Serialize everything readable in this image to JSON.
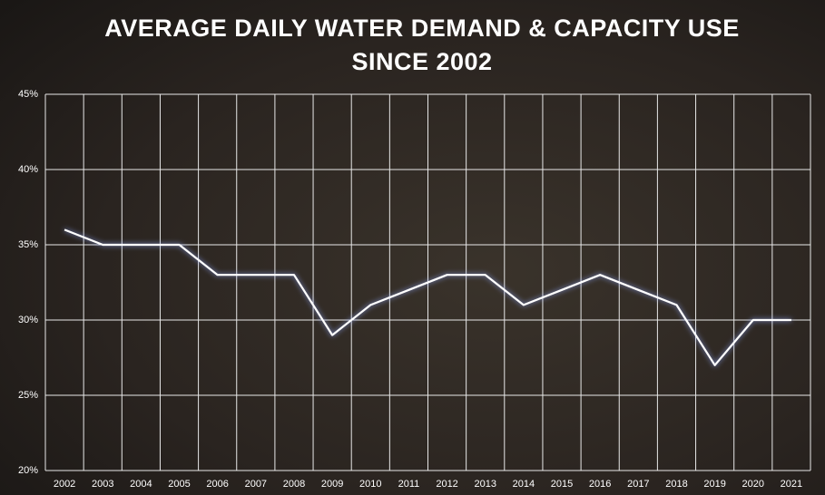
{
  "chart_data": {
    "type": "line",
    "title": [
      "AVERAGE DAILY WATER DEMAND & CAPACITY USE",
      "SINCE 2002"
    ],
    "categories": [
      "2002",
      "2003",
      "2004",
      "2005",
      "2006",
      "2007",
      "2008",
      "2009",
      "2010",
      "2011",
      "2012",
      "2013",
      "2014",
      "2015",
      "2016",
      "2017",
      "2018",
      "2019",
      "2020",
      "2021"
    ],
    "values": [
      36,
      35,
      35,
      35,
      33,
      33,
      33,
      29,
      31,
      32,
      33,
      33,
      31,
      32,
      33,
      32,
      31,
      27,
      30,
      30
    ],
    "color": "#ffffff",
    "ylim": [
      20,
      45
    ],
    "yticks": [
      {
        "value": 20,
        "label": "20%"
      },
      {
        "value": 25,
        "label": "25%"
      },
      {
        "value": 30,
        "label": "30%"
      },
      {
        "value": 35,
        "label": "35%"
      },
      {
        "value": 40,
        "label": "40%"
      },
      {
        "value": 45,
        "label": "45%"
      }
    ],
    "grid": true
  }
}
